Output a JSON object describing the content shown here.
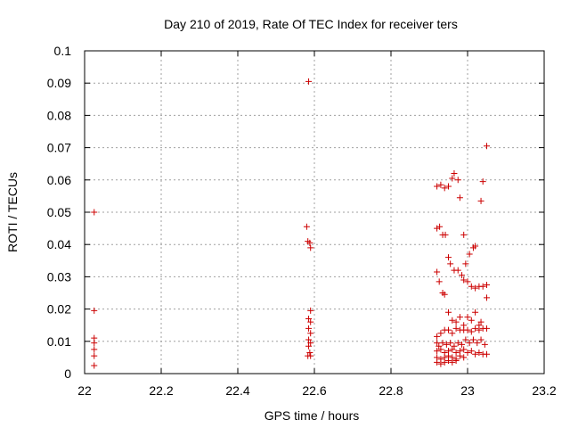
{
  "chart_data": {
    "type": "scatter",
    "title": "Day 210 of 2019, Rate Of TEC Index for receiver ters",
    "xlabel": "GPS time / hours",
    "ylabel": "ROTI / TECUs",
    "xlim": [
      22,
      23.2
    ],
    "ylim": [
      0,
      0.1
    ],
    "xticks": [
      22,
      22.2,
      22.4,
      22.6,
      22.8,
      23,
      23.2
    ],
    "xtick_labels": [
      "22",
      "22.2",
      "22.4",
      "22.6",
      "22.8",
      "23",
      "23.2"
    ],
    "yticks": [
      0,
      0.01,
      0.02,
      0.03,
      0.04,
      0.05,
      0.06,
      0.07,
      0.08,
      0.09,
      0.1
    ],
    "ytick_labels": [
      "0",
      "0.01",
      "0.02",
      "0.03",
      "0.04",
      "0.05",
      "0.06",
      "0.07",
      "0.08",
      "0.09",
      "0.1"
    ],
    "grid": true,
    "marker": "+",
    "color": "#cc0000",
    "series": [
      {
        "name": "ROTI",
        "points": [
          [
            22.025,
            0.05
          ],
          [
            22.025,
            0.0195
          ],
          [
            22.025,
            0.011
          ],
          [
            22.025,
            0.0095
          ],
          [
            22.025,
            0.0075
          ],
          [
            22.025,
            0.0055
          ],
          [
            22.025,
            0.0025
          ],
          [
            22.585,
            0.0905
          ],
          [
            22.58,
            0.0455
          ],
          [
            22.583,
            0.041
          ],
          [
            22.588,
            0.0405
          ],
          [
            22.59,
            0.039
          ],
          [
            22.59,
            0.0195
          ],
          [
            22.585,
            0.017
          ],
          [
            22.59,
            0.016
          ],
          [
            22.585,
            0.014
          ],
          [
            22.59,
            0.0125
          ],
          [
            22.585,
            0.0105
          ],
          [
            22.59,
            0.0095
          ],
          [
            22.585,
            0.0085
          ],
          [
            22.588,
            0.0065
          ],
          [
            22.583,
            0.0055
          ],
          [
            22.59,
            0.0055
          ],
          [
            22.92,
            0.058
          ],
          [
            22.93,
            0.0585
          ],
          [
            22.94,
            0.0575
          ],
          [
            22.95,
            0.058
          ],
          [
            22.96,
            0.0605
          ],
          [
            22.965,
            0.062
          ],
          [
            22.975,
            0.06
          ],
          [
            22.98,
            0.0545
          ],
          [
            22.92,
            0.045
          ],
          [
            22.927,
            0.0455
          ],
          [
            22.935,
            0.043
          ],
          [
            22.942,
            0.043
          ],
          [
            22.99,
            0.043
          ],
          [
            22.92,
            0.0315
          ],
          [
            22.926,
            0.0285
          ],
          [
            22.935,
            0.025
          ],
          [
            22.94,
            0.0245
          ],
          [
            22.95,
            0.036
          ],
          [
            22.955,
            0.034
          ],
          [
            22.965,
            0.032
          ],
          [
            22.975,
            0.032
          ],
          [
            22.985,
            0.0305
          ],
          [
            22.995,
            0.034
          ],
          [
            22.99,
            0.029
          ],
          [
            23.0,
            0.0285
          ],
          [
            23.005,
            0.037
          ],
          [
            23.015,
            0.039
          ],
          [
            23.02,
            0.0395
          ],
          [
            23.01,
            0.027
          ],
          [
            23.02,
            0.0265
          ],
          [
            23.03,
            0.027
          ],
          [
            23.035,
            0.0535
          ],
          [
            23.04,
            0.0595
          ],
          [
            23.04,
            0.027
          ],
          [
            23.05,
            0.0275
          ],
          [
            23.05,
            0.0235
          ],
          [
            23.05,
            0.0705
          ],
          [
            22.92,
            0.0115
          ],
          [
            22.93,
            0.0125
          ],
          [
            22.94,
            0.0135
          ],
          [
            22.95,
            0.0135
          ],
          [
            22.96,
            0.0125
          ],
          [
            22.97,
            0.014
          ],
          [
            22.98,
            0.0135
          ],
          [
            22.99,
            0.0135
          ],
          [
            23.0,
            0.0135
          ],
          [
            23.01,
            0.013
          ],
          [
            23.02,
            0.014
          ],
          [
            23.03,
            0.0135
          ],
          [
            23.04,
            0.014
          ],
          [
            23.05,
            0.014
          ],
          [
            22.95,
            0.019
          ],
          [
            22.96,
            0.0165
          ],
          [
            22.97,
            0.016
          ],
          [
            22.98,
            0.0175
          ],
          [
            22.99,
            0.015
          ],
          [
            23.0,
            0.0175
          ],
          [
            23.01,
            0.0165
          ],
          [
            23.02,
            0.019
          ],
          [
            23.03,
            0.015
          ],
          [
            23.035,
            0.016
          ],
          [
            22.92,
            0.0095
          ],
          [
            22.925,
            0.0085
          ],
          [
            22.935,
            0.0095
          ],
          [
            22.945,
            0.009
          ],
          [
            22.955,
            0.0095
          ],
          [
            22.965,
            0.0085
          ],
          [
            22.975,
            0.0095
          ],
          [
            22.985,
            0.009
          ],
          [
            22.995,
            0.0105
          ],
          [
            23.005,
            0.0095
          ],
          [
            23.015,
            0.0105
          ],
          [
            23.025,
            0.0095
          ],
          [
            23.035,
            0.0105
          ],
          [
            23.045,
            0.009
          ],
          [
            22.92,
            0.007
          ],
          [
            22.93,
            0.0075
          ],
          [
            22.94,
            0.0065
          ],
          [
            22.95,
            0.007
          ],
          [
            22.96,
            0.0075
          ],
          [
            22.97,
            0.0065
          ],
          [
            22.98,
            0.007
          ],
          [
            22.99,
            0.0075
          ],
          [
            23.0,
            0.0065
          ],
          [
            23.01,
            0.007
          ],
          [
            23.02,
            0.006
          ],
          [
            23.03,
            0.0065
          ],
          [
            23.04,
            0.006
          ],
          [
            23.05,
            0.006
          ],
          [
            22.92,
            0.005
          ],
          [
            22.93,
            0.0045
          ],
          [
            22.94,
            0.005
          ],
          [
            22.95,
            0.0055
          ],
          [
            22.96,
            0.005
          ],
          [
            22.97,
            0.0045
          ],
          [
            22.98,
            0.0055
          ],
          [
            22.99,
            0.005
          ],
          [
            22.92,
            0.0035
          ],
          [
            22.93,
            0.003
          ],
          [
            22.94,
            0.0035
          ],
          [
            22.95,
            0.004
          ],
          [
            22.96,
            0.0035
          ],
          [
            22.97,
            0.004
          ]
        ]
      }
    ]
  }
}
